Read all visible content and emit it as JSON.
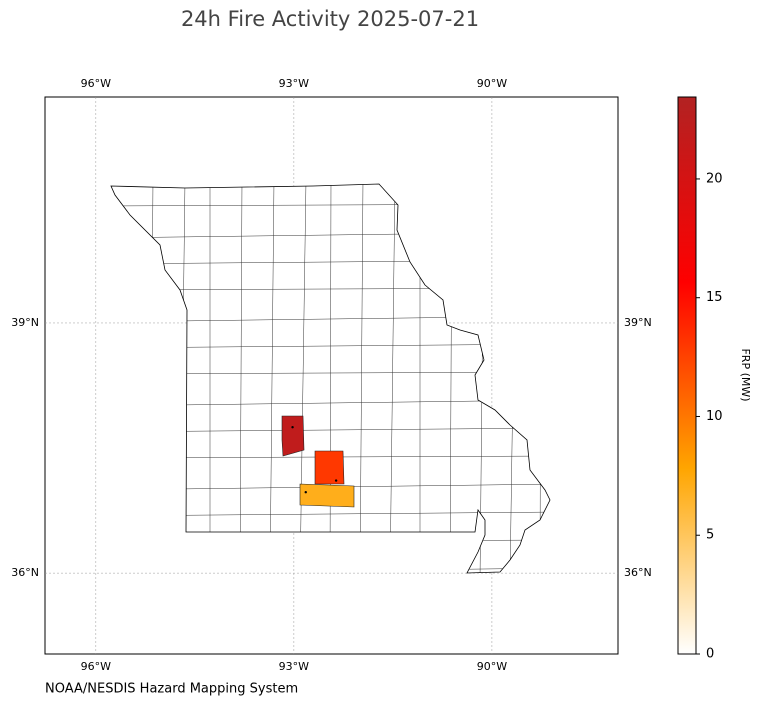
{
  "chart_data": {
    "type": "map",
    "title": "24h Fire Activity 2025-07-21",
    "xlim": [
      -96.77,
      -88.09
    ],
    "ylim": [
      35.03,
      41.71
    ],
    "xticks": [
      {
        "value": -96,
        "label": "96°W"
      },
      {
        "value": -93,
        "label": "93°W"
      },
      {
        "value": -90,
        "label": "90°W"
      }
    ],
    "yticks": [
      {
        "value": 36,
        "label": "36°N"
      },
      {
        "value": 39,
        "label": "39°N"
      }
    ],
    "grid": true,
    "fires": {
      "lon": [
        -93.02,
        -92.36,
        -92.82
      ],
      "lat": [
        37.75,
        37.11,
        36.97
      ],
      "frp": [
        22,
        13,
        7
      ]
    },
    "colorbar": {
      "label": "FRP (MW)",
      "lim": [
        0,
        23.45
      ],
      "ticks": [
        0,
        5,
        10,
        15,
        20
      ],
      "colors": [
        "#ffffff",
        "#ffa500",
        "#ff0000",
        "#b22222"
      ]
    },
    "source": "NOAA/NESDIS Hazard Mapping System"
  }
}
